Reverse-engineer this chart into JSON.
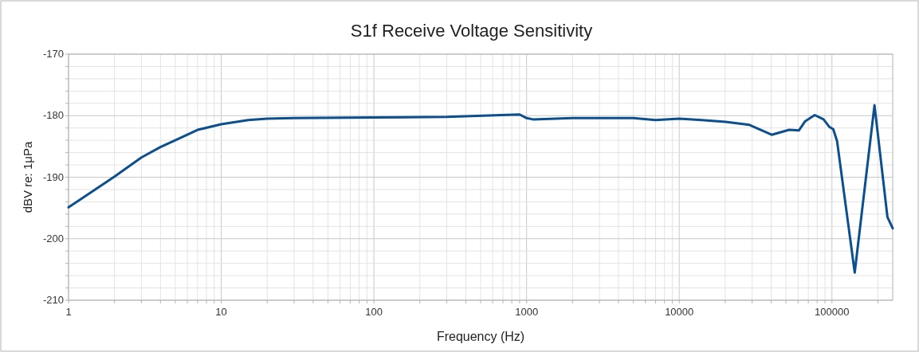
{
  "chart_data": {
    "type": "line",
    "title": "S1f Receive Voltage Sensitivity",
    "xlabel": "Frequency (Hz)",
    "ylabel": "dBV re: 1μPa",
    "log": "x",
    "grid": true,
    "marker": "none",
    "line_style": "solid",
    "xlim": [
      1,
      250000
    ],
    "ylim": [
      -210,
      -170
    ],
    "xticks": [
      1,
      {
        "value": 2,
        "label": null
      },
      {
        "value": 3,
        "label": null
      },
      {
        "value": 4,
        "label": null
      },
      {
        "value": 5,
        "label": null
      },
      {
        "value": 6,
        "label": null
      },
      {
        "value": 7,
        "label": null
      },
      {
        "value": 8,
        "label": null
      },
      {
        "value": 9,
        "label": null
      },
      10,
      {
        "value": 20,
        "label": null
      },
      {
        "value": 30,
        "label": null
      },
      {
        "value": 40,
        "label": null
      },
      {
        "value": 50,
        "label": null
      },
      {
        "value": 60,
        "label": null
      },
      {
        "value": 70,
        "label": null
      },
      {
        "value": 80,
        "label": null
      },
      {
        "value": 90,
        "label": null
      },
      100,
      {
        "value": 200,
        "label": null
      },
      {
        "value": 300,
        "label": null
      },
      {
        "value": 400,
        "label": null
      },
      {
        "value": 500,
        "label": null
      },
      {
        "value": 600,
        "label": null
      },
      {
        "value": 700,
        "label": null
      },
      {
        "value": 800,
        "label": null
      },
      {
        "value": 900,
        "label": null
      },
      1000,
      {
        "value": 2000,
        "label": null
      },
      {
        "value": 3000,
        "label": null
      },
      {
        "value": 4000,
        "label": null
      },
      {
        "value": 5000,
        "label": null
      },
      {
        "value": 6000,
        "label": null
      },
      {
        "value": 7000,
        "label": null
      },
      {
        "value": 8000,
        "label": null
      },
      {
        "value": 9000,
        "label": null
      },
      10000,
      {
        "value": 20000,
        "label": null
      },
      {
        "value": 30000,
        "label": null
      },
      {
        "value": 40000,
        "label": null
      },
      {
        "value": 50000,
        "label": null
      },
      {
        "value": 60000,
        "label": null
      },
      {
        "value": 70000,
        "label": null
      },
      {
        "value": 80000,
        "label": null
      },
      {
        "value": 90000,
        "label": null
      },
      100000,
      {
        "value": 200000,
        "label": null
      }
    ],
    "yticks": [
      -210,
      {
        "value": -208,
        "label": null
      },
      {
        "value": -206,
        "label": null
      },
      {
        "value": -204,
        "label": null
      },
      {
        "value": -202,
        "label": null
      },
      -200,
      {
        "value": -198,
        "label": null
      },
      {
        "value": -196,
        "label": null
      },
      {
        "value": -194,
        "label": null
      },
      {
        "value": -192,
        "label": null
      },
      -190,
      {
        "value": -188,
        "label": null
      },
      {
        "value": -186,
        "label": null
      },
      {
        "value": -184,
        "label": null
      },
      {
        "value": -182,
        "label": null
      },
      -180,
      {
        "value": -178,
        "label": null
      },
      {
        "value": -176,
        "label": null
      },
      {
        "value": -174,
        "label": null
      },
      {
        "value": -172,
        "label": null
      },
      -170
    ],
    "series": [
      {
        "color": "#0b4f8e",
        "x": [
          1,
          2,
          3,
          4,
          5,
          7,
          10,
          15,
          20,
          30,
          100,
          300,
          900,
          1000,
          1100,
          2000,
          5000,
          7000,
          10000,
          14000,
          20100,
          28800,
          40300,
          52500,
          60700,
          66800,
          77200,
          88100,
          96000,
          102000,
          108000,
          141000,
          190000,
          231000,
          250000
        ],
        "values": [
          -194.9,
          -189.9,
          -186.8,
          -185.1,
          -184,
          -182.3,
          -181.4,
          -180.7,
          -180.5,
          -180.4,
          -180.3,
          -180.2,
          -179.8,
          -180.4,
          -180.6,
          -180.4,
          -180.4,
          -180.7,
          -180.5,
          -180.7,
          -181,
          -181.5,
          -183.1,
          -182.3,
          -182.4,
          -180.9,
          -179.9,
          -180.6,
          -181.8,
          -182.2,
          -184.1,
          -205.5,
          -178.3,
          -196.5,
          -198.3
        ]
      }
    ]
  }
}
